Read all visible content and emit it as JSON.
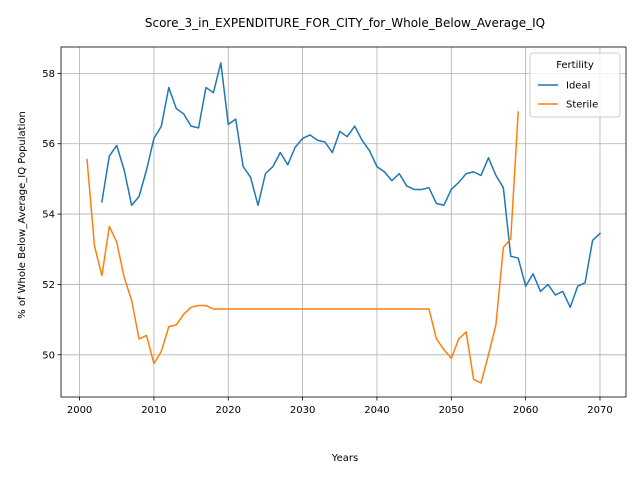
{
  "chart_data": {
    "type": "line",
    "title": "Score_3_in_EXPENDITURE_FOR_CITY_for_Whole_Below_Average_IQ",
    "xlabel": "Years",
    "ylabel": "% of Whole Below_Average_IQ Population",
    "xlim": [
      1997.5,
      2073.5
    ],
    "ylim": [
      48.8,
      58.75
    ],
    "xticks": [
      2000,
      2010,
      2020,
      2030,
      2040,
      2050,
      2060,
      2070
    ],
    "yticks": [
      50,
      52,
      54,
      56,
      58
    ],
    "grid": true,
    "legend": {
      "title": "Fertility",
      "position": "top-right"
    },
    "series": [
      {
        "name": "Ideal",
        "color": "#1f77b4",
        "x": [
          2003,
          2004,
          2005,
          2006,
          2007,
          2008,
          2009,
          2010,
          2011,
          2012,
          2013,
          2014,
          2015,
          2016,
          2017,
          2018,
          2019,
          2020,
          2021,
          2022,
          2023,
          2024,
          2025,
          2026,
          2027,
          2028,
          2029,
          2030,
          2031,
          2032,
          2033,
          2034,
          2035,
          2036,
          2037,
          2038,
          2039,
          2040,
          2041,
          2042,
          2043,
          2044,
          2045,
          2046,
          2047,
          2048,
          2049,
          2050,
          2051,
          2052,
          2053,
          2054,
          2055,
          2056,
          2057,
          2058,
          2059,
          2060,
          2061,
          2062,
          2063,
          2064,
          2065,
          2066,
          2067,
          2068,
          2069,
          2070
        ],
        "values": [
          54.35,
          55.65,
          55.95,
          55.25,
          54.25,
          54.5,
          55.25,
          56.15,
          56.5,
          57.6,
          57.0,
          56.85,
          56.5,
          56.45,
          57.6,
          57.45,
          58.3,
          56.55,
          56.7,
          55.35,
          55.05,
          54.25,
          55.15,
          55.35,
          55.75,
          55.4,
          55.9,
          56.15,
          56.25,
          56.1,
          56.05,
          55.75,
          56.35,
          56.2,
          56.5,
          56.1,
          55.8,
          55.35,
          55.2,
          54.95,
          55.15,
          54.8,
          54.7,
          54.7,
          54.75,
          54.3,
          54.25,
          54.7,
          54.9,
          55.15,
          55.2,
          55.1,
          55.6,
          55.1,
          54.75,
          52.8,
          52.75,
          51.95,
          52.3,
          51.8,
          52.0,
          51.7,
          51.8,
          51.35,
          51.95,
          52.05,
          53.25,
          53.45
        ]
      },
      {
        "name": "Sterile",
        "color": "#ff7f0e",
        "x": [
          2001,
          2002,
          2003,
          2004,
          2005,
          2006,
          2007,
          2008,
          2009,
          2010,
          2011,
          2012,
          2013,
          2014,
          2015,
          2016,
          2017,
          2018,
          2019,
          2020,
          2021,
          2022,
          2023,
          2024,
          2025,
          2026,
          2027,
          2028,
          2029,
          2030,
          2031,
          2032,
          2033,
          2034,
          2035,
          2036,
          2037,
          2038,
          2039,
          2040,
          2041,
          2042,
          2043,
          2044,
          2045,
          2046,
          2047,
          2048,
          2049,
          2050,
          2051,
          2052,
          2053,
          2054,
          2055,
          2056,
          2057,
          2058,
          2059
        ],
        "values": [
          55.55,
          53.1,
          52.25,
          53.65,
          53.2,
          52.2,
          51.55,
          50.45,
          50.55,
          49.75,
          50.1,
          50.8,
          50.85,
          51.15,
          51.35,
          51.4,
          51.4,
          51.3,
          51.3,
          51.3,
          51.3,
          51.3,
          51.3,
          51.3,
          51.3,
          51.3,
          51.3,
          51.3,
          51.3,
          51.3,
          51.3,
          51.3,
          51.3,
          51.3,
          51.3,
          51.3,
          51.3,
          51.3,
          51.3,
          51.3,
          51.3,
          51.3,
          51.3,
          51.3,
          51.3,
          51.3,
          51.3,
          50.45,
          50.15,
          49.9,
          50.45,
          50.65,
          49.3,
          49.2,
          50.0,
          50.85,
          53.05,
          53.3,
          56.9
        ]
      }
    ]
  }
}
